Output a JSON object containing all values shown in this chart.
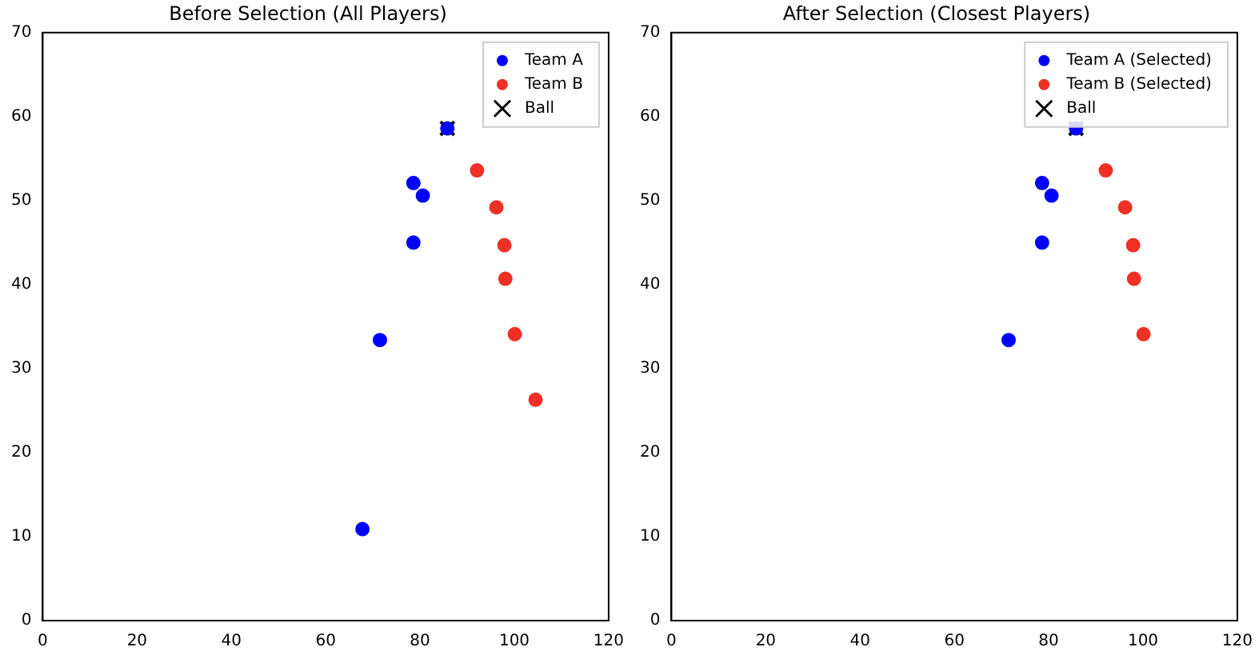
{
  "chart_data": [
    {
      "type": "scatter",
      "title": "Before Selection (All Players)",
      "xlim": [
        0,
        120
      ],
      "xticks": [
        0,
        20,
        40,
        60,
        80,
        100,
        120
      ],
      "ylim": [
        0,
        70
      ],
      "yticks": [
        0,
        10,
        20,
        30,
        40,
        50,
        60,
        70
      ],
      "grid": false,
      "legend": "top right",
      "series": [
        {
          "name": "Team A",
          "color": "#0000ff",
          "marker": "circle",
          "x": [
            85.8,
            78.6,
            80.6,
            78.6,
            71.5,
            67.8
          ],
          "values": [
            58.6,
            52.1,
            50.6,
            45.0,
            33.4,
            10.9
          ]
        },
        {
          "name": "Team B",
          "color": "#ee3124",
          "marker": "circle",
          "x": [
            92.1,
            96.2,
            97.9,
            98.1,
            100.1,
            104.5
          ],
          "values": [
            53.6,
            49.2,
            44.7,
            40.7,
            34.1,
            26.3
          ]
        },
        {
          "name": "Ball",
          "color": "#000000",
          "marker": "cross",
          "x": [
            85.8
          ],
          "values": [
            58.6
          ]
        }
      ]
    },
    {
      "type": "scatter",
      "title": "After Selection (Closest Players)",
      "xlim": [
        0,
        120
      ],
      "xticks": [
        0,
        20,
        40,
        60,
        80,
        100,
        120
      ],
      "ylim": [
        0,
        70
      ],
      "yticks": [
        0,
        10,
        20,
        30,
        40,
        50,
        60,
        70
      ],
      "grid": false,
      "legend": "top right",
      "series": [
        {
          "name": "Team A (Selected)",
          "color": "#0000ff",
          "marker": "circle",
          "x": [
            85.8,
            78.6,
            80.6,
            78.6,
            71.5
          ],
          "values": [
            58.6,
            52.1,
            50.6,
            45.0,
            33.4
          ]
        },
        {
          "name": "Team B (Selected)",
          "color": "#ee3124",
          "marker": "circle",
          "x": [
            92.1,
            96.2,
            97.9,
            98.1,
            100.1
          ],
          "values": [
            53.6,
            49.2,
            44.7,
            40.7,
            34.1
          ]
        },
        {
          "name": "Ball",
          "color": "#000000",
          "marker": "cross",
          "x": [
            85.8
          ],
          "values": [
            58.6
          ]
        }
      ]
    }
  ]
}
